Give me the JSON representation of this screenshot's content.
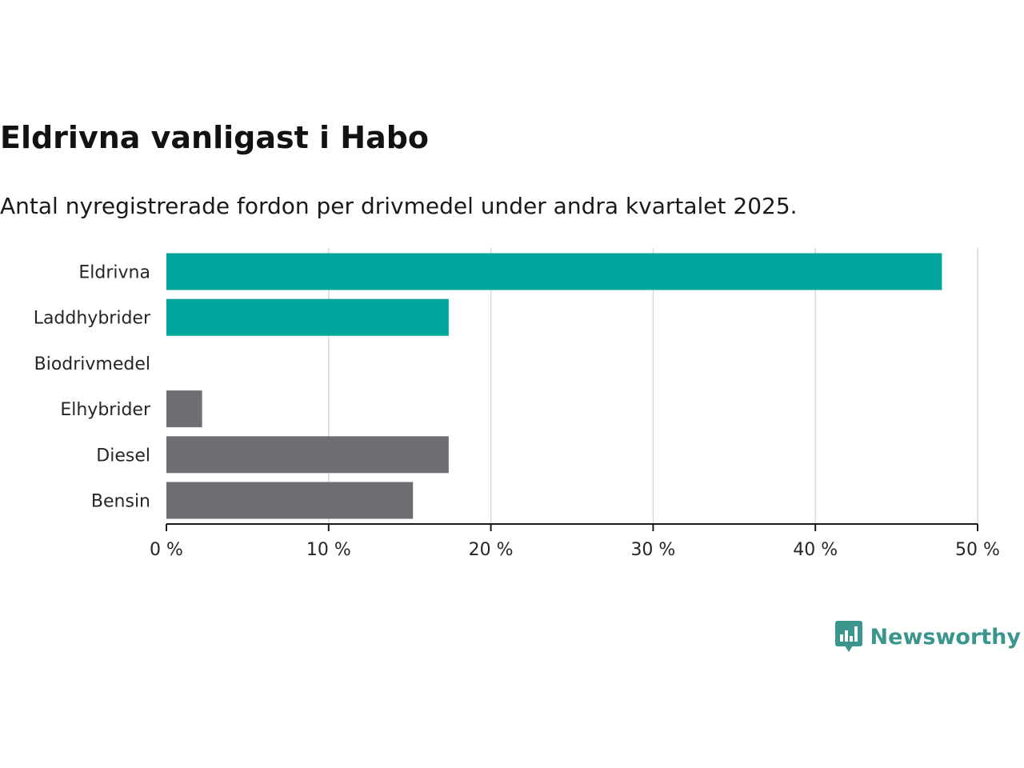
{
  "title": "Eldrivna vanligast i Habo",
  "subtitle": "Antal nyregistrerade fordon per drivmedel under andra kvartalet 2025.",
  "brand": {
    "name": "Newsworthy",
    "icon": "newsworthy-logo-icon",
    "color": "#3a958c"
  },
  "colors": {
    "highlight": "#00a59b",
    "default": "#6f6e74",
    "grid": "#d9d9d9",
    "axis": "#1a1a1a"
  },
  "chart_data": {
    "type": "bar",
    "orientation": "horizontal",
    "categories": [
      "Eldrivna",
      "Laddhybrider",
      "Biodrivmedel",
      "Elhybrider",
      "Diesel",
      "Bensin"
    ],
    "values": [
      47.8,
      17.4,
      0,
      2.2,
      17.4,
      15.2
    ],
    "highlight": [
      true,
      true,
      false,
      false,
      false,
      false
    ],
    "xlim": [
      0,
      50
    ],
    "xticks": [
      0,
      10,
      20,
      30,
      40,
      50
    ],
    "xtick_labels": [
      "0 %",
      "10 %",
      "20 %",
      "30 %",
      "40 %",
      "50 %"
    ],
    "grid": true
  }
}
